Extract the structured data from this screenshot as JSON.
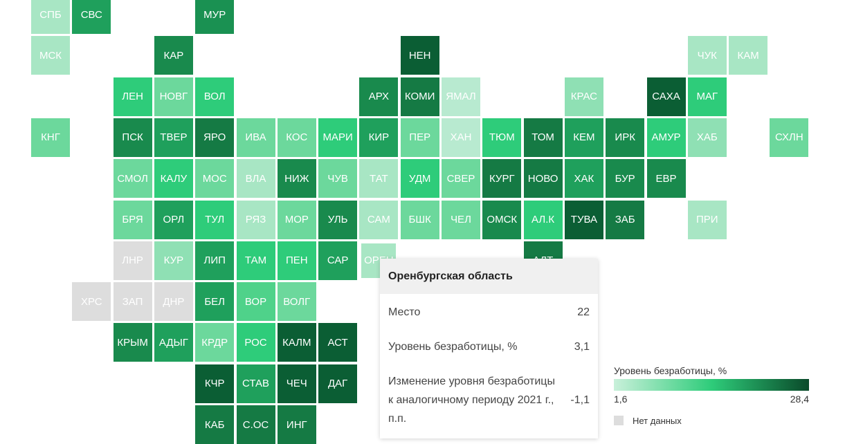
{
  "tiles": [
    {
      "label": "СПБ",
      "color": "#a8e6c4"
    },
    {
      "label": "СВС",
      "color": "#1fa05c"
    },
    {
      "label": "МУР",
      "color": "#1a9152"
    },
    {
      "label": "МСК",
      "color": "#a8e6c4"
    },
    {
      "label": "КАР",
      "color": "#198a4d"
    },
    {
      "label": "НЕН",
      "color": "#0b5e34"
    },
    {
      "label": "ЧУК",
      "color": "#a8e6c4"
    },
    {
      "label": "КАМ",
      "color": "#a8e6c4"
    },
    {
      "label": "ЛЕН",
      "color": "#2ecc7a"
    },
    {
      "label": "НОВГ",
      "color": "#6cd89c"
    },
    {
      "label": "ВОЛ",
      "color": "#2ecc7a"
    },
    {
      "label": "АРХ",
      "color": "#198a4d"
    },
    {
      "label": "КОМИ",
      "color": "#157a44"
    },
    {
      "label": "ЯМАЛ",
      "color": "#b8ead0"
    },
    {
      "label": "КРАС",
      "color": "#8fe0b4"
    },
    {
      "label": "САХА",
      "color": "#0b5e34"
    },
    {
      "label": "МАГ",
      "color": "#2ecc7a"
    },
    {
      "label": "КНГ",
      "color": "#6cd89c"
    },
    {
      "label": "ПСК",
      "color": "#198a4d"
    },
    {
      "label": "ТВЕР",
      "color": "#1fa05c"
    },
    {
      "label": "ЯРО",
      "color": "#157a44"
    },
    {
      "label": "ИВА",
      "color": "#6cd89c"
    },
    {
      "label": "КОС",
      "color": "#6cd89c"
    },
    {
      "label": "МАРИ",
      "color": "#2ecc7a"
    },
    {
      "label": "КИР",
      "color": "#1fa05c"
    },
    {
      "label": "ПЕР",
      "color": "#6cd89c"
    },
    {
      "label": "ХАН",
      "color": "#b8ead0"
    },
    {
      "label": "ТЮМ",
      "color": "#2ecc7a"
    },
    {
      "label": "ТОМ",
      "color": "#157a44"
    },
    {
      "label": "КЕМ",
      "color": "#1fa05c"
    },
    {
      "label": "ИРК",
      "color": "#198a4d"
    },
    {
      "label": "АМУР",
      "color": "#2ecc7a"
    },
    {
      "label": "ХАБ",
      "color": "#8fe0b4"
    },
    {
      "label": "СХЛН",
      "color": "#6cd89c"
    },
    {
      "label": "СМОЛ",
      "color": "#6cd89c"
    },
    {
      "label": "КАЛУ",
      "color": "#2ecc7a"
    },
    {
      "label": "МОС",
      "color": "#6cd89c"
    },
    {
      "label": "ВЛА",
      "color": "#a8e6c4"
    },
    {
      "label": "НИЖ",
      "color": "#198a4d"
    },
    {
      "label": "ЧУВ",
      "color": "#6cd89c"
    },
    {
      "label": "ТАТ",
      "color": "#a8e6c4"
    },
    {
      "label": "УДМ",
      "color": "#2ecc7a"
    },
    {
      "label": "СВЕР",
      "color": "#6cd89c"
    },
    {
      "label": "КУРГ",
      "color": "#157a44"
    },
    {
      "label": "НОВО",
      "color": "#157a44"
    },
    {
      "label": "ХАК",
      "color": "#1fa05c"
    },
    {
      "label": "БУР",
      "color": "#198a4d"
    },
    {
      "label": "ЕВР",
      "color": "#198a4d"
    },
    {
      "label": "БРЯ",
      "color": "#6cd89c"
    },
    {
      "label": "ОРЛ",
      "color": "#1fa05c"
    },
    {
      "label": "ТУЛ",
      "color": "#2ecc7a"
    },
    {
      "label": "РЯЗ",
      "color": "#a8e6c4"
    },
    {
      "label": "МОР",
      "color": "#6cd89c"
    },
    {
      "label": "УЛЬ",
      "color": "#198a4d"
    },
    {
      "label": "САМ",
      "color": "#a8e6c4"
    },
    {
      "label": "БШК",
      "color": "#6cd89c"
    },
    {
      "label": "ЧЕЛ",
      "color": "#6cd89c"
    },
    {
      "label": "ОМСК",
      "color": "#198a4d"
    },
    {
      "label": "АЛ.К",
      "color": "#2ecc7a"
    },
    {
      "label": "ТУВА",
      "color": "#0b5e34"
    },
    {
      "label": "ЗАБ",
      "color": "#157a44"
    },
    {
      "label": "ПРИ",
      "color": "#a8e6c4"
    },
    {
      "label": "ЛНР",
      "color": "#dddddd"
    },
    {
      "label": "КУР",
      "color": "#8fe0b4"
    },
    {
      "label": "ЛИП",
      "color": "#1fa05c"
    },
    {
      "label": "ТАМ",
      "color": "#2ecc7a"
    },
    {
      "label": "ПЕН",
      "color": "#2ecc7a"
    },
    {
      "label": "САР",
      "color": "#1fa05c"
    },
    {
      "label": "ОРЕН",
      "color": "#a8e6c4"
    },
    {
      "label": "АЛТ",
      "color": "#157a44"
    },
    {
      "label": "ХРС",
      "color": "#dddddd"
    },
    {
      "label": "ЗАП",
      "color": "#dddddd"
    },
    {
      "label": "ДНР",
      "color": "#dddddd"
    },
    {
      "label": "БЕЛ",
      "color": "#1fa05c"
    },
    {
      "label": "ВОР",
      "color": "#4fd28a"
    },
    {
      "label": "ВОЛГ",
      "color": "#6cd89c"
    },
    {
      "label": "КРЫМ",
      "color": "#198a4d"
    },
    {
      "label": "АДЫГ",
      "color": "#1fa05c"
    },
    {
      "label": "КРДР",
      "color": "#6cd89c"
    },
    {
      "label": "РОС",
      "color": "#2ecc7a"
    },
    {
      "label": "КАЛМ",
      "color": "#0b5e34"
    },
    {
      "label": "АСТ",
      "color": "#0b5e34"
    },
    {
      "label": "КЧР",
      "color": "#0b5e34"
    },
    {
      "label": "СТАВ",
      "color": "#1fa05c"
    },
    {
      "label": "ЧЕЧ",
      "color": "#0b5e34"
    },
    {
      "label": "ДАГ",
      "color": "#0b5e34"
    },
    {
      "label": "КАБ",
      "color": "#157a44"
    },
    {
      "label": "С.ОС",
      "color": "#157a44"
    },
    {
      "label": "ИНГ",
      "color": "#157a44"
    }
  ],
  "tooltip": {
    "title": "Оренбургская область",
    "rows": [
      [
        "Место",
        "22"
      ],
      [
        "Уровень безработицы, %",
        "3,1"
      ],
      [
        "Изменение уровня безработицы к аналогичному периоду 2021 г., п.п.",
        "-1,1"
      ]
    ]
  },
  "legend": {
    "title": "Уровень безработицы, %",
    "min": "1,6",
    "max": "28,4",
    "no_data": "Нет данных"
  }
}
